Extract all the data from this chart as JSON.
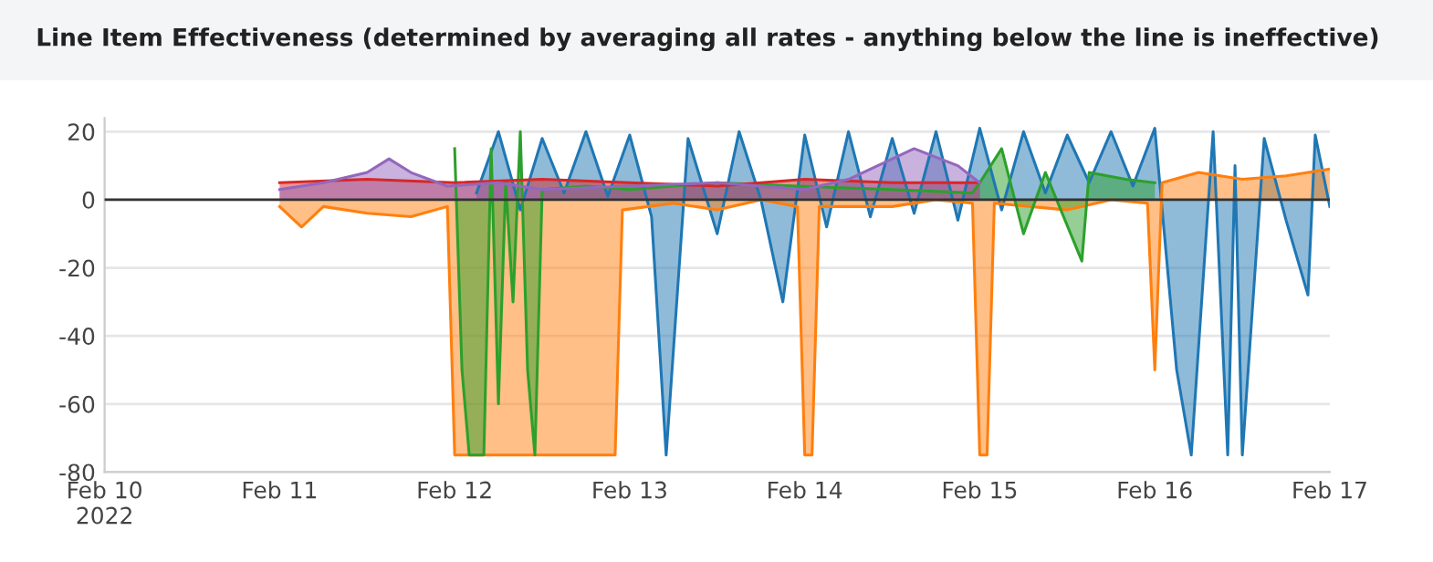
{
  "chart_data": {
    "type": "area",
    "title": "Line Item Effectiveness (determined by averaging all rates - anything below the line is ineffective)",
    "xlim": [
      "2022-02-10",
      "2022-02-17"
    ],
    "xticks": [
      {
        "value": "2022-02-10",
        "label": "Feb 10\n2022"
      },
      {
        "value": "2022-02-11",
        "label": "Feb 11"
      },
      {
        "value": "2022-02-12",
        "label": "Feb 12"
      },
      {
        "value": "2022-02-13",
        "label": "Feb 13"
      },
      {
        "value": "2022-02-14",
        "label": "Feb 14"
      },
      {
        "value": "2022-02-15",
        "label": "Feb 15"
      },
      {
        "value": "2022-02-16",
        "label": "Feb 16"
      },
      {
        "value": "2022-02-17",
        "label": "Feb 17"
      }
    ],
    "ylim": [
      -80,
      24
    ],
    "yticks": [
      -80,
      -60,
      -40,
      -20,
      0,
      20
    ],
    "grid": "y",
    "legend": false,
    "ref_lines": [
      {
        "axis": "y",
        "value": 0,
        "color": "#333333"
      }
    ],
    "series": [
      {
        "color": "#1f77b4",
        "x": [
          "2022-02-12T03:00",
          "2022-02-12T06:00",
          "2022-02-12T09:00",
          "2022-02-12T12:00",
          "2022-02-12T15:00",
          "2022-02-12T18:00",
          "2022-02-12T21:00",
          "2022-02-13T00:00",
          "2022-02-13T03:00",
          "2022-02-13T05:00",
          "2022-02-13T08:00",
          "2022-02-13T12:00",
          "2022-02-13T15:00",
          "2022-02-13T18:00",
          "2022-02-13T21:00",
          "2022-02-14T00:00",
          "2022-02-14T03:00",
          "2022-02-14T06:00",
          "2022-02-14T09:00",
          "2022-02-14T12:00",
          "2022-02-14T15:00",
          "2022-02-14T18:00",
          "2022-02-14T21:00",
          "2022-02-15T00:00",
          "2022-02-15T03:00",
          "2022-02-15T06:00",
          "2022-02-15T09:00",
          "2022-02-15T12:00",
          "2022-02-15T15:00",
          "2022-02-15T18:00",
          "2022-02-15T21:00",
          "2022-02-16T00:00",
          "2022-02-16T03:00",
          "2022-02-16T05:00",
          "2022-02-16T08:00",
          "2022-02-16T10:00",
          "2022-02-16T11:00",
          "2022-02-16T12:00",
          "2022-02-16T15:00",
          "2022-02-16T18:00",
          "2022-02-16T21:00",
          "2022-02-16T22:00",
          "2022-02-17T00:00"
        ],
        "values": [
          2,
          20,
          -3,
          18,
          2,
          20,
          1,
          19,
          -5,
          -75,
          18,
          -10,
          20,
          0,
          -30,
          19,
          -8,
          20,
          -5,
          18,
          -4,
          20,
          -6,
          21,
          -3,
          20,
          2,
          19,
          5,
          20,
          4,
          21,
          -50,
          -75,
          20,
          -75,
          10,
          -75,
          18,
          -6,
          -28,
          19,
          -2
        ]
      },
      {
        "color": "#ff7f0e",
        "x": [
          "2022-02-11T00:00",
          "2022-02-11T03:00",
          "2022-02-11T06:00",
          "2022-02-11T12:00",
          "2022-02-11T18:00",
          "2022-02-11T23:00",
          "2022-02-12T00:00",
          "2022-02-12T22:00",
          "2022-02-12T23:00",
          "2022-02-13T06:00",
          "2022-02-13T12:00",
          "2022-02-13T18:00",
          "2022-02-13T23:00",
          "2022-02-14T00:00",
          "2022-02-14T01:00",
          "2022-02-14T02:00",
          "2022-02-14T12:00",
          "2022-02-14T18:00",
          "2022-02-14T23:00",
          "2022-02-15T00:00",
          "2022-02-15T01:00",
          "2022-02-15T02:00",
          "2022-02-15T12:00",
          "2022-02-15T18:00",
          "2022-02-15T23:00",
          "2022-02-16T00:00",
          "2022-02-16T01:00",
          "2022-02-16T06:00",
          "2022-02-16T12:00",
          "2022-02-16T18:00",
          "2022-02-17T00:00"
        ],
        "values": [
          -2,
          -8,
          -2,
          -4,
          -5,
          -2,
          -75,
          -75,
          -3,
          -1,
          -3,
          0,
          -2,
          -75,
          -75,
          -2,
          -2,
          0,
          -1,
          -75,
          -75,
          -1,
          -3,
          0,
          -1,
          -50,
          5,
          8,
          6,
          7,
          9
        ]
      },
      {
        "color": "#2ca02c",
        "x": [
          "2022-02-12T00:00",
          "2022-02-12T01:00",
          "2022-02-12T02:00",
          "2022-02-12T04:00",
          "2022-02-12T05:00",
          "2022-02-12T06:00",
          "2022-02-12T07:00",
          "2022-02-12T08:00",
          "2022-02-12T09:00",
          "2022-02-12T10:00",
          "2022-02-12T11:00",
          "2022-02-12T12:00",
          "2022-02-12T18:00",
          "2022-02-13T00:00",
          "2022-02-13T12:00",
          "2022-02-13T23:00",
          "2022-02-14T12:00",
          "2022-02-14T23:00",
          "2022-02-15T00:00",
          "2022-02-15T03:00",
          "2022-02-15T06:00",
          "2022-02-15T09:00",
          "2022-02-15T14:00",
          "2022-02-15T15:00",
          "2022-02-15T20:00",
          "2022-02-16T00:00"
        ],
        "values": [
          15,
          -50,
          -75,
          -75,
          15,
          -60,
          5,
          -30,
          20,
          -50,
          -75,
          3,
          4,
          3,
          5,
          4,
          3,
          2,
          5,
          15,
          -10,
          8,
          -18,
          8,
          6,
          5
        ]
      },
      {
        "color": "#d62728",
        "x": [
          "2022-02-11T00:00",
          "2022-02-11T12:00",
          "2022-02-12T00:00",
          "2022-02-12T12:00",
          "2022-02-13T00:00",
          "2022-02-13T12:00",
          "2022-02-14T00:00",
          "2022-02-14T12:00",
          "2022-02-15T00:00"
        ],
        "values": [
          5,
          6,
          5,
          6,
          5,
          4,
          6,
          5,
          5
        ]
      },
      {
        "color": "#9467bd",
        "x": [
          "2022-02-11T00:00",
          "2022-02-11T06:00",
          "2022-02-11T12:00",
          "2022-02-11T15:00",
          "2022-02-11T18:00",
          "2022-02-11T23:00",
          "2022-02-12T06:00",
          "2022-02-12T12:00",
          "2022-02-13T00:00",
          "2022-02-13T12:00",
          "2022-02-14T00:00",
          "2022-02-14T06:00",
          "2022-02-14T15:00",
          "2022-02-14T21:00",
          "2022-02-15T00:00"
        ],
        "values": [
          3,
          5,
          8,
          12,
          8,
          4,
          5,
          3,
          4,
          5,
          3,
          6,
          15,
          10,
          5
        ]
      }
    ]
  }
}
